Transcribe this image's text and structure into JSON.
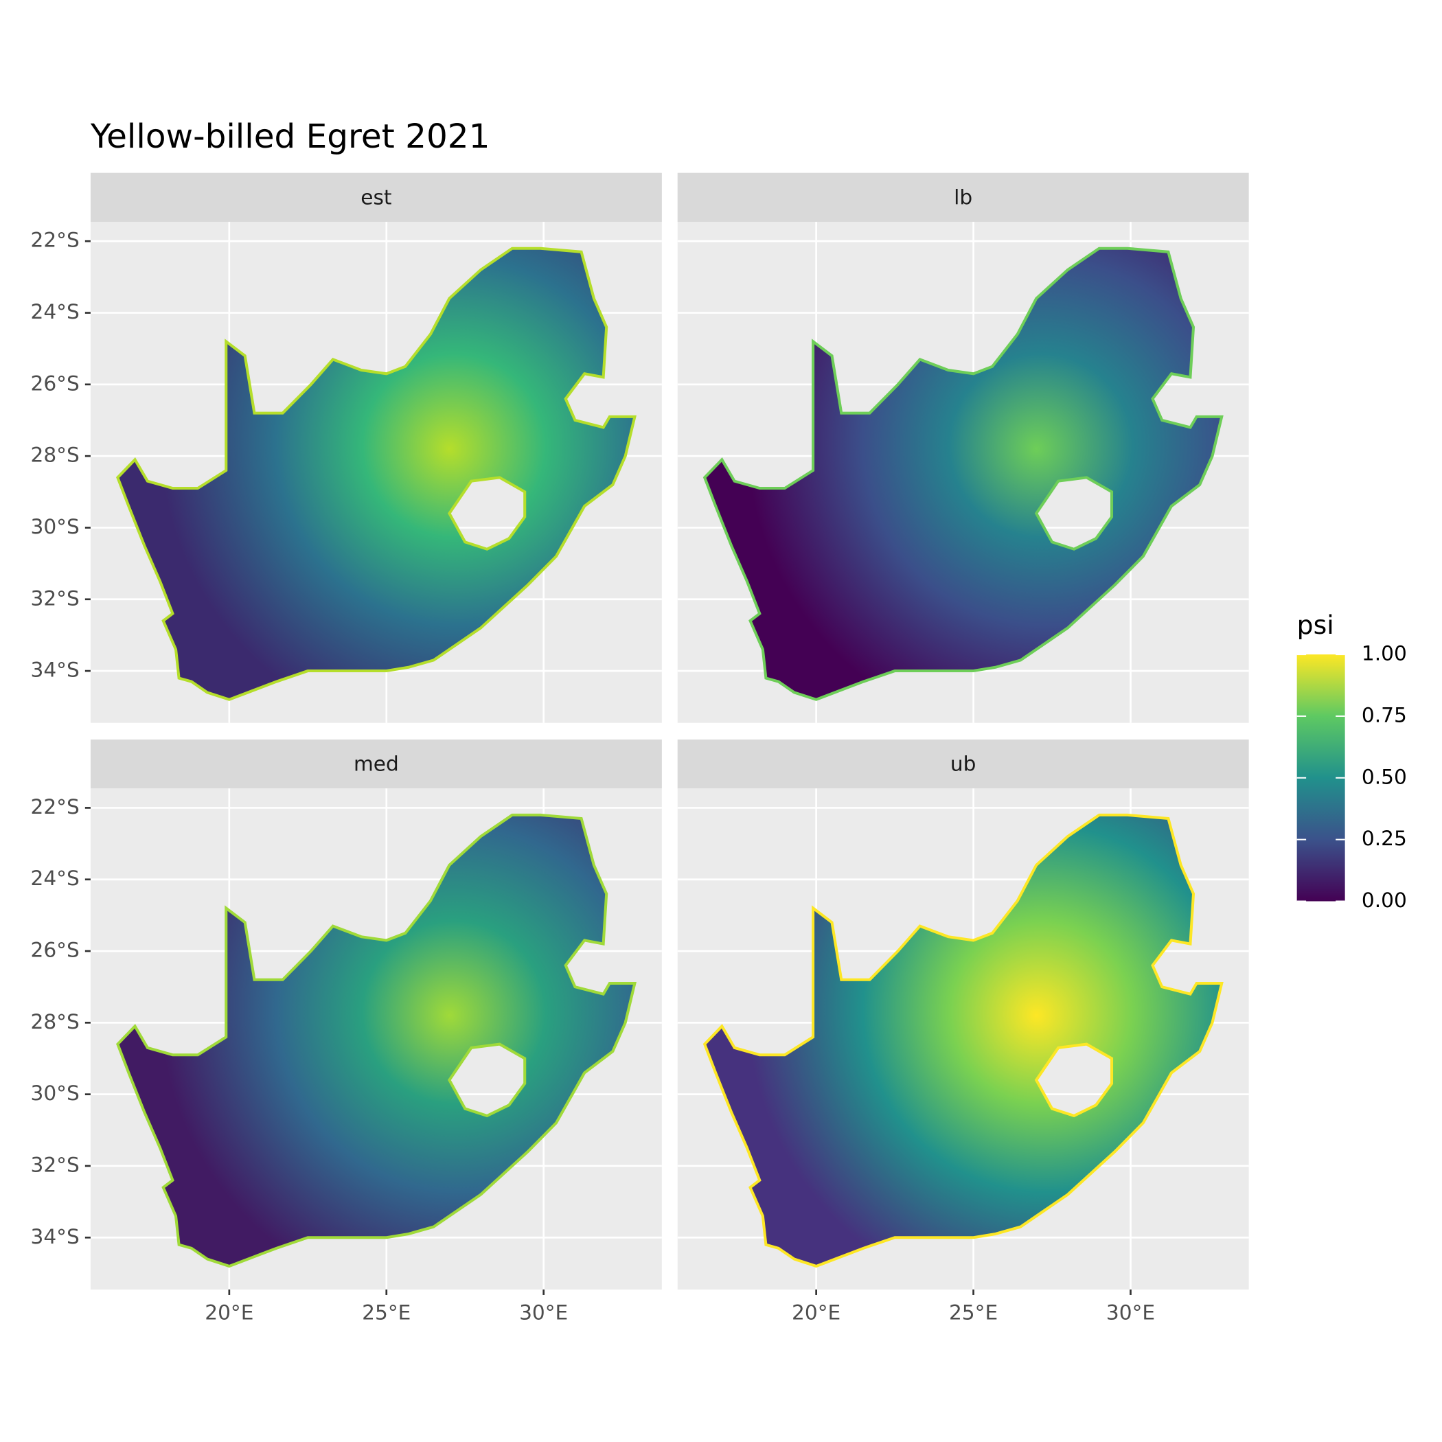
{
  "chart_data": {
    "type": "raster-map",
    "title": "Yellow-billed Egret 2021",
    "facets": [
      "est",
      "lb",
      "med",
      "ub"
    ],
    "xlim": [
      15.59,
      33.76
    ],
    "ylim": [
      -35.45,
      -21.46
    ],
    "xticks": [
      {
        "value": 20,
        "label": "20°E"
      },
      {
        "value": 25,
        "label": "25°E"
      },
      {
        "value": 30,
        "label": "30°E"
      }
    ],
    "yticks": [
      {
        "value": -22,
        "label": "22°S"
      },
      {
        "value": -24,
        "label": "24°S"
      },
      {
        "value": -26,
        "label": "26°S"
      },
      {
        "value": -28,
        "label": "28°S"
      },
      {
        "value": -30,
        "label": "30°S"
      },
      {
        "value": -32,
        "label": "32°S"
      },
      {
        "value": -34,
        "label": "34°S"
      }
    ],
    "grid": true,
    "legend": {
      "title": "psi",
      "position": "right",
      "lim": [
        0,
        1
      ],
      "ticks": [
        {
          "value": 0,
          "label": "0.00"
        },
        {
          "value": 0.25,
          "label": "0.25"
        },
        {
          "value": 0.5,
          "label": "0.50"
        },
        {
          "value": 0.75,
          "label": "0.75"
        },
        {
          "value": 1,
          "label": "1.00"
        }
      ],
      "colors": [
        "#440154",
        "#3b528b",
        "#21918c",
        "#5ec962",
        "#fde725"
      ]
    }
  }
}
